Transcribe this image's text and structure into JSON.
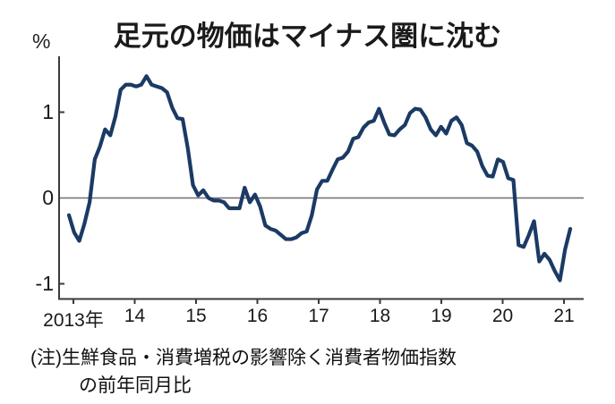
{
  "title": "足元の物価はマイナス圏に沈む",
  "y_axis_unit": "%",
  "note": {
    "line1": "(注)生鮮食品・消費増税の影響除く消費者物価指数",
    "line2": "の前年同月比"
  },
  "chart_data": {
    "type": "line",
    "title": "足元の物価はマイナス圏に沈む",
    "ylabel": "%",
    "x_tick_labels": [
      "2013年",
      "14",
      "15",
      "16",
      "17",
      "18",
      "19",
      "20",
      "21"
    ],
    "y_tick_labels": [
      "1",
      "0",
      "-1"
    ],
    "y_ticks": [
      1,
      0,
      -1
    ],
    "ylim": [
      -1.18,
      1.65
    ],
    "x_start_month": "2013-01",
    "x_end_month": "2021-02",
    "grid": "zero-line-only",
    "legend": "none",
    "line_color": "#1b3a64",
    "axis_color": "#3a3a3a",
    "zero_line_color": "#6f6f6f",
    "values": [
      -0.2,
      -0.4,
      -0.5,
      -0.3,
      -0.05,
      0.45,
      0.6,
      0.8,
      0.73,
      0.95,
      1.26,
      1.32,
      1.32,
      1.3,
      1.32,
      1.42,
      1.32,
      1.3,
      1.28,
      1.23,
      1.05,
      0.93,
      0.92,
      0.58,
      0.15,
      0.03,
      0.09,
      0.0,
      -0.03,
      -0.03,
      -0.05,
      -0.12,
      -0.12,
      -0.12,
      0.12,
      -0.05,
      0.04,
      -0.1,
      -0.32,
      -0.36,
      -0.38,
      -0.43,
      -0.48,
      -0.48,
      -0.46,
      -0.41,
      -0.39,
      -0.2,
      0.1,
      0.2,
      0.2,
      0.33,
      0.45,
      0.47,
      0.54,
      0.69,
      0.71,
      0.82,
      0.88,
      0.9,
      1.04,
      0.88,
      0.74,
      0.73,
      0.8,
      0.85,
      0.99,
      1.04,
      1.03,
      0.94,
      0.8,
      0.73,
      0.83,
      0.75,
      0.9,
      0.94,
      0.85,
      0.64,
      0.61,
      0.54,
      0.37,
      0.26,
      0.25,
      0.45,
      0.42,
      0.23,
      0.21,
      -0.55,
      -0.57,
      -0.43,
      -0.27,
      -0.74,
      -0.65,
      -0.72,
      -0.85,
      -0.96,
      -0.6,
      -0.36
    ]
  }
}
